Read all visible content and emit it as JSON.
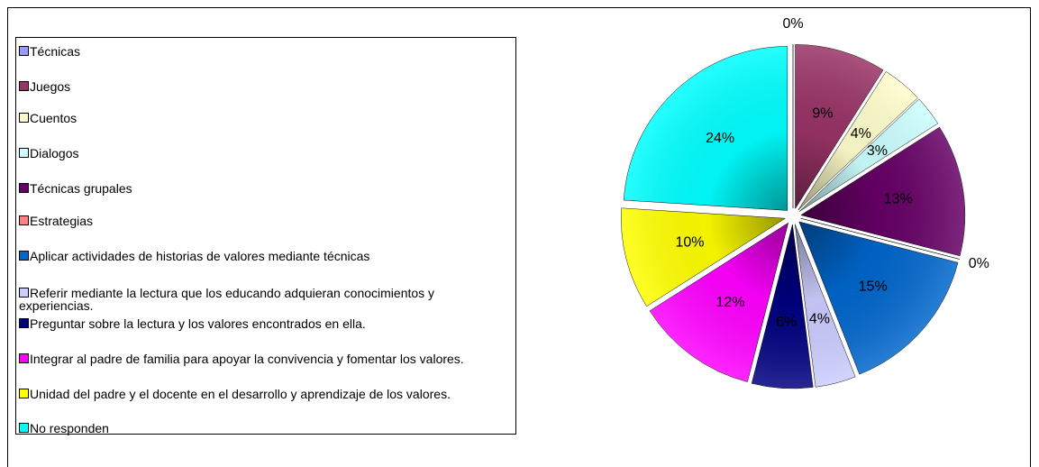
{
  "chart_data": {
    "type": "pie",
    "categories": [
      "Técnicas",
      "Juegos",
      "Cuentos",
      "Dialogos",
      "Técnicas grupales",
      "Estrategias",
      "Aplicar actividades de historias de valores mediante técnicas",
      "Referir mediante la lectura que los educando adquieran conocimientos y experiencias.",
      "Preguntar sobre la lectura y los valores encontrados en ella.",
      "Integrar al padre de familia para apoyar la convivencia y fomentar los valores.",
      "Unidad del padre y el docente en el desarrollo y aprendizaje de los valores.",
      "No responden"
    ],
    "values": [
      0,
      9,
      4,
      3,
      13,
      0,
      15,
      4,
      6,
      12,
      10,
      24
    ],
    "value_labels": [
      "0%",
      "9%",
      "4%",
      "3%",
      "13%",
      "0%",
      "15%",
      "4%",
      "6%",
      "12%",
      "10%",
      "24%"
    ],
    "colors": [
      "#9999ff",
      "#993366",
      "#ffffcc",
      "#ccffff",
      "#660066",
      "#ff8080",
      "#0066cc",
      "#ccccff",
      "#000080",
      "#ff00ff",
      "#ffff00",
      "#00ffff"
    ],
    "legend": "left"
  }
}
